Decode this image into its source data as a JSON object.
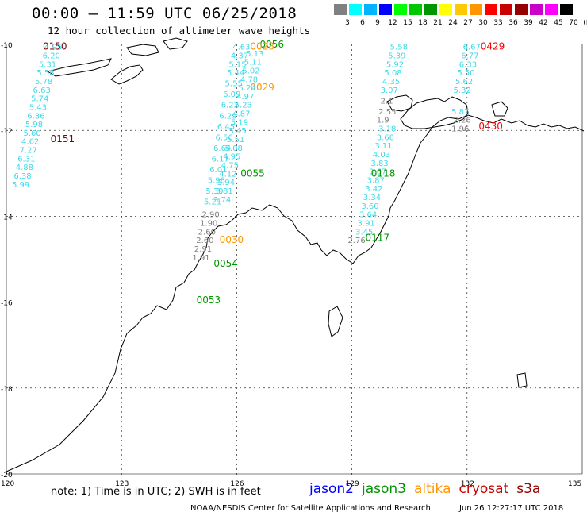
{
  "title": "00:00 – 11:59 UTC 06/25/2018",
  "subtitle": "12 hour collection of altimeter wave heights",
  "legend": {
    "labels": [
      "3",
      "6",
      "9",
      "12",
      "15",
      "18",
      "21",
      "24",
      "27",
      "30",
      "33",
      "36",
      "39",
      "42",
      "45",
      "70",
      "(ft)"
    ],
    "colors": [
      "#808080",
      "#00ffff",
      "#00b4ff",
      "#0000ff",
      "#00ff00",
      "#00c800",
      "#009600",
      "#ffff00",
      "#ffc800",
      "#ff9600",
      "#ff0000",
      "#c80000",
      "#960000",
      "#c800c8",
      "#ff00ff",
      "#000000"
    ]
  },
  "axes": {
    "x_ticks": [
      "120",
      "123",
      "126",
      "129",
      "132",
      "135"
    ],
    "y_ticks": [
      "-10",
      "-12",
      "-14",
      "-16",
      "-18",
      "-20"
    ]
  },
  "note": "note: 1) Time is in UTC; 2) SWH is in feet",
  "satellites": [
    {
      "name": "jason2",
      "color": "#0000ff"
    },
    {
      "name": "jason3",
      "color": "#009600"
    },
    {
      "name": "altika",
      "color": "#ff9600"
    },
    {
      "name": "cryosat",
      "color": "#c80000"
    },
    {
      "name": "s3a",
      "color": "#960000"
    }
  ],
  "credit": "NOAA/NESDIS Center for Satellite Applications and Research",
  "timestamp": "Jun 26 12:27:17 UTC 2018",
  "track_labels": [
    {
      "text": "0150",
      "lon": 120.95,
      "lat": -10.05,
      "color": "#800000"
    },
    {
      "text": "0151",
      "lon": 121.15,
      "lat": -12.2,
      "color": "#800000"
    },
    {
      "text": "0056",
      "lon": 126.6,
      "lat": -10.0,
      "color": "#009600"
    },
    {
      "text": "0028",
      "lon": 126.35,
      "lat": -10.05,
      "color": "#ff9600"
    },
    {
      "text": "0029",
      "lon": 126.35,
      "lat": -11.0,
      "color": "#ff9600"
    },
    {
      "text": "0055",
      "lon": 126.1,
      "lat": -13.0,
      "color": "#009600"
    },
    {
      "text": "0030",
      "lon": 125.55,
      "lat": -14.55,
      "color": "#ff9600"
    },
    {
      "text": "0054",
      "lon": 125.4,
      "lat": -15.1,
      "color": "#009600"
    },
    {
      "text": "0053",
      "lon": 124.95,
      "lat": -15.95,
      "color": "#009600"
    },
    {
      "text": "0118",
      "lon": 129.5,
      "lat": -13.0,
      "color": "#009600"
    },
    {
      "text": "0117",
      "lon": 129.35,
      "lat": -14.5,
      "color": "#009600"
    },
    {
      "text": "0429",
      "lon": 132.35,
      "lat": -10.05,
      "color": "#ff0000"
    },
    {
      "text": "0430",
      "lon": 132.3,
      "lat": -11.9,
      "color": "#ff0000"
    }
  ],
  "tracks": [
    {
      "color": "#40d8e8",
      "points": [
        {
          "lon": 121.2,
          "lat": -10.05,
          "v": "4.95"
        },
        {
          "lon": 121.15,
          "lat": -10.25,
          "v": "6.20"
        },
        {
          "lon": 121.05,
          "lat": -10.45,
          "v": "5.31"
        },
        {
          "lon": 121.0,
          "lat": -10.65,
          "v": "5.58"
        },
        {
          "lon": 120.95,
          "lat": -10.85,
          "v": "5.78"
        },
        {
          "lon": 120.9,
          "lat": -11.05,
          "v": "6.63"
        },
        {
          "lon": 120.85,
          "lat": -11.25,
          "v": "5.74"
        },
        {
          "lon": 120.8,
          "lat": -11.45,
          "v": "5.43"
        },
        {
          "lon": 120.75,
          "lat": -11.65,
          "v": "6.36"
        },
        {
          "lon": 120.7,
          "lat": -11.85,
          "v": "5.98"
        },
        {
          "lon": 120.65,
          "lat": -12.05,
          "v": "5.60"
        },
        {
          "lon": 120.6,
          "lat": -12.25,
          "v": "4.62"
        },
        {
          "lon": 120.55,
          "lat": -12.45,
          "v": "7.27"
        },
        {
          "lon": 120.5,
          "lat": -12.65,
          "v": "6.31"
        },
        {
          "lon": 120.45,
          "lat": -12.85,
          "v": "4.88"
        },
        {
          "lon": 120.4,
          "lat": -13.05,
          "v": "6.38"
        },
        {
          "lon": 120.35,
          "lat": -13.25,
          "v": "5.99"
        }
      ]
    },
    {
      "color": "#40d8e8",
      "points": [
        {
          "lon": 126.1,
          "lat": -10.05,
          "v": "4.63"
        },
        {
          "lon": 126.05,
          "lat": -10.25,
          "v": "4.37"
        },
        {
          "lon": 126.0,
          "lat": -10.45,
          "v": "5.15"
        },
        {
          "lon": 125.95,
          "lat": -10.65,
          "v": "5.44"
        },
        {
          "lon": 125.9,
          "lat": -10.9,
          "v": "5.55"
        },
        {
          "lon": 125.85,
          "lat": -11.15,
          "v": "6.09"
        },
        {
          "lon": 125.8,
          "lat": -11.4,
          "v": "6.22"
        },
        {
          "lon": 125.75,
          "lat": -11.65,
          "v": "6.29"
        },
        {
          "lon": 125.7,
          "lat": -11.9,
          "v": "6.45"
        },
        {
          "lon": 125.65,
          "lat": -12.15,
          "v": "6.56"
        },
        {
          "lon": 125.6,
          "lat": -12.4,
          "v": "6.64"
        },
        {
          "lon": 125.55,
          "lat": -12.65,
          "v": "6.17"
        },
        {
          "lon": 125.5,
          "lat": -12.9,
          "v": "6.01"
        },
        {
          "lon": 125.45,
          "lat": -13.15,
          "v": "5.98"
        },
        {
          "lon": 125.4,
          "lat": -13.4,
          "v": "5.39"
        },
        {
          "lon": 125.35,
          "lat": -13.65,
          "v": "5.21"
        }
      ]
    },
    {
      "color": "#40d8e8",
      "points": [
        {
          "lon": 126.45,
          "lat": -10.2,
          "v": "5.13"
        },
        {
          "lon": 126.4,
          "lat": -10.4,
          "v": "5.11"
        },
        {
          "lon": 126.35,
          "lat": -10.6,
          "v": "5.02"
        },
        {
          "lon": 126.3,
          "lat": -10.8,
          "v": "4.78"
        },
        {
          "lon": 126.25,
          "lat": -11.0,
          "v": "5.24"
        },
        {
          "lon": 126.2,
          "lat": -11.2,
          "v": "4.97"
        },
        {
          "lon": 126.15,
          "lat": -11.4,
          "v": "5.23"
        },
        {
          "lon": 126.1,
          "lat": -11.6,
          "v": "4.87"
        },
        {
          "lon": 126.05,
          "lat": -11.8,
          "v": "5.19"
        },
        {
          "lon": 126.0,
          "lat": -12.0,
          "v": "5.45"
        },
        {
          "lon": 125.95,
          "lat": -12.2,
          "v": "5.51"
        },
        {
          "lon": 125.9,
          "lat": -12.4,
          "v": "5.08"
        },
        {
          "lon": 125.85,
          "lat": -12.6,
          "v": "4.95"
        },
        {
          "lon": 125.8,
          "lat": -12.8,
          "v": "4.75"
        },
        {
          "lon": 125.75,
          "lat": -13.0,
          "v": "4.12"
        },
        {
          "lon": 125.7,
          "lat": -13.2,
          "v": "3.94"
        },
        {
          "lon": 125.65,
          "lat": -13.4,
          "v": "3.81"
        },
        {
          "lon": 125.6,
          "lat": -13.6,
          "v": "3.74"
        }
      ]
    },
    {
      "color": "#808080",
      "points": [
        {
          "lon": 125.3,
          "lat": -13.95,
          "v": "2.90"
        },
        {
          "lon": 125.25,
          "lat": -14.15,
          "v": "1.90"
        },
        {
          "lon": 125.2,
          "lat": -14.35,
          "v": "2.60"
        },
        {
          "lon": 125.15,
          "lat": -14.55,
          "v": "2.60"
        },
        {
          "lon": 125.1,
          "lat": -14.75,
          "v": "2.91"
        },
        {
          "lon": 125.05,
          "lat": -14.95,
          "v": "1.91"
        }
      ]
    },
    {
      "color": "#40d8e8",
      "points": [
        {
          "lon": 130.2,
          "lat": -10.05,
          "v": "5.58"
        },
        {
          "lon": 130.15,
          "lat": -10.25,
          "v": "5.39"
        },
        {
          "lon": 130.1,
          "lat": -10.45,
          "v": "5.92"
        },
        {
          "lon": 130.05,
          "lat": -10.65,
          "v": "5.08"
        },
        {
          "lon": 130.0,
          "lat": -10.85,
          "v": "4.35"
        },
        {
          "lon": 129.95,
          "lat": -11.05,
          "v": "3.07"
        },
        {
          "lon": 129.9,
          "lat": -11.95,
          "v": "3.18"
        },
        {
          "lon": 129.85,
          "lat": -12.15,
          "v": "3.68"
        },
        {
          "lon": 129.8,
          "lat": -12.35,
          "v": "3.11"
        },
        {
          "lon": 129.75,
          "lat": -12.55,
          "v": "4.03"
        },
        {
          "lon": 129.7,
          "lat": -12.75,
          "v": "3.83"
        },
        {
          "lon": 129.65,
          "lat": -12.95,
          "v": "3.67"
        },
        {
          "lon": 129.6,
          "lat": -13.15,
          "v": "3.87"
        },
        {
          "lon": 129.55,
          "lat": -13.35,
          "v": "3.42"
        },
        {
          "lon": 129.5,
          "lat": -13.55,
          "v": "3.34"
        },
        {
          "lon": 129.45,
          "lat": -13.75,
          "v": "3.60"
        },
        {
          "lon": 129.4,
          "lat": -13.95,
          "v": "3.64"
        },
        {
          "lon": 129.35,
          "lat": -14.15,
          "v": "3.91"
        },
        {
          "lon": 129.3,
          "lat": -14.35,
          "v": "3.45"
        }
      ]
    },
    {
      "color": "#808080",
      "points": [
        {
          "lon": 129.95,
          "lat": -11.3,
          "v": "2.1"
        },
        {
          "lon": 129.9,
          "lat": -11.55,
          "v": "2.55"
        },
        {
          "lon": 129.85,
          "lat": -11.75,
          "v": "1.9"
        },
        {
          "lon": 129.1,
          "lat": -14.55,
          "v": "2.76"
        }
      ]
    },
    {
      "color": "#40d8e8",
      "points": [
        {
          "lon": 132.1,
          "lat": -10.05,
          "v": "6.67"
        },
        {
          "lon": 132.05,
          "lat": -10.25,
          "v": "6.77"
        },
        {
          "lon": 132.0,
          "lat": -10.45,
          "v": "6.33"
        },
        {
          "lon": 131.95,
          "lat": -10.65,
          "v": "5.50"
        },
        {
          "lon": 131.9,
          "lat": -10.85,
          "v": "5.62"
        },
        {
          "lon": 131.85,
          "lat": -11.05,
          "v": "5.32"
        },
        {
          "lon": 131.8,
          "lat": -11.55,
          "v": "5.87"
        }
      ]
    },
    {
      "color": "#808080",
      "points": [
        {
          "lon": 131.85,
          "lat": -11.75,
          "v": "2.26"
        },
        {
          "lon": 131.8,
          "lat": -11.95,
          "v": "1.96"
        }
      ]
    }
  ]
}
